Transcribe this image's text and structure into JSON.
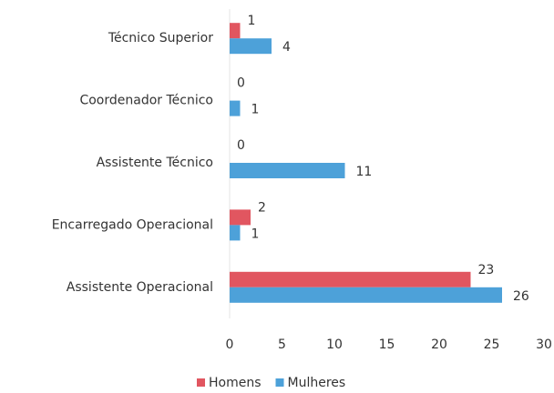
{
  "chart_data": {
    "type": "bar",
    "orientation": "horizontal",
    "categories": [
      "Técnico Superior",
      "Coordenador Técnico",
      "Assistente Técnico",
      "Encarregado Operacional",
      "Assistente Operacional"
    ],
    "series": [
      {
        "name": "Homens",
        "color": "#e15660",
        "values": [
          1,
          0,
          0,
          2,
          23
        ]
      },
      {
        "name": "Mulheres",
        "color": "#4da1d9",
        "values": [
          4,
          1,
          11,
          1,
          26
        ]
      }
    ],
    "xlim": [
      0,
      30
    ],
    "xticks": [
      0,
      5,
      10,
      15,
      20,
      25,
      30
    ],
    "grid": false,
    "legend": "bottom"
  }
}
